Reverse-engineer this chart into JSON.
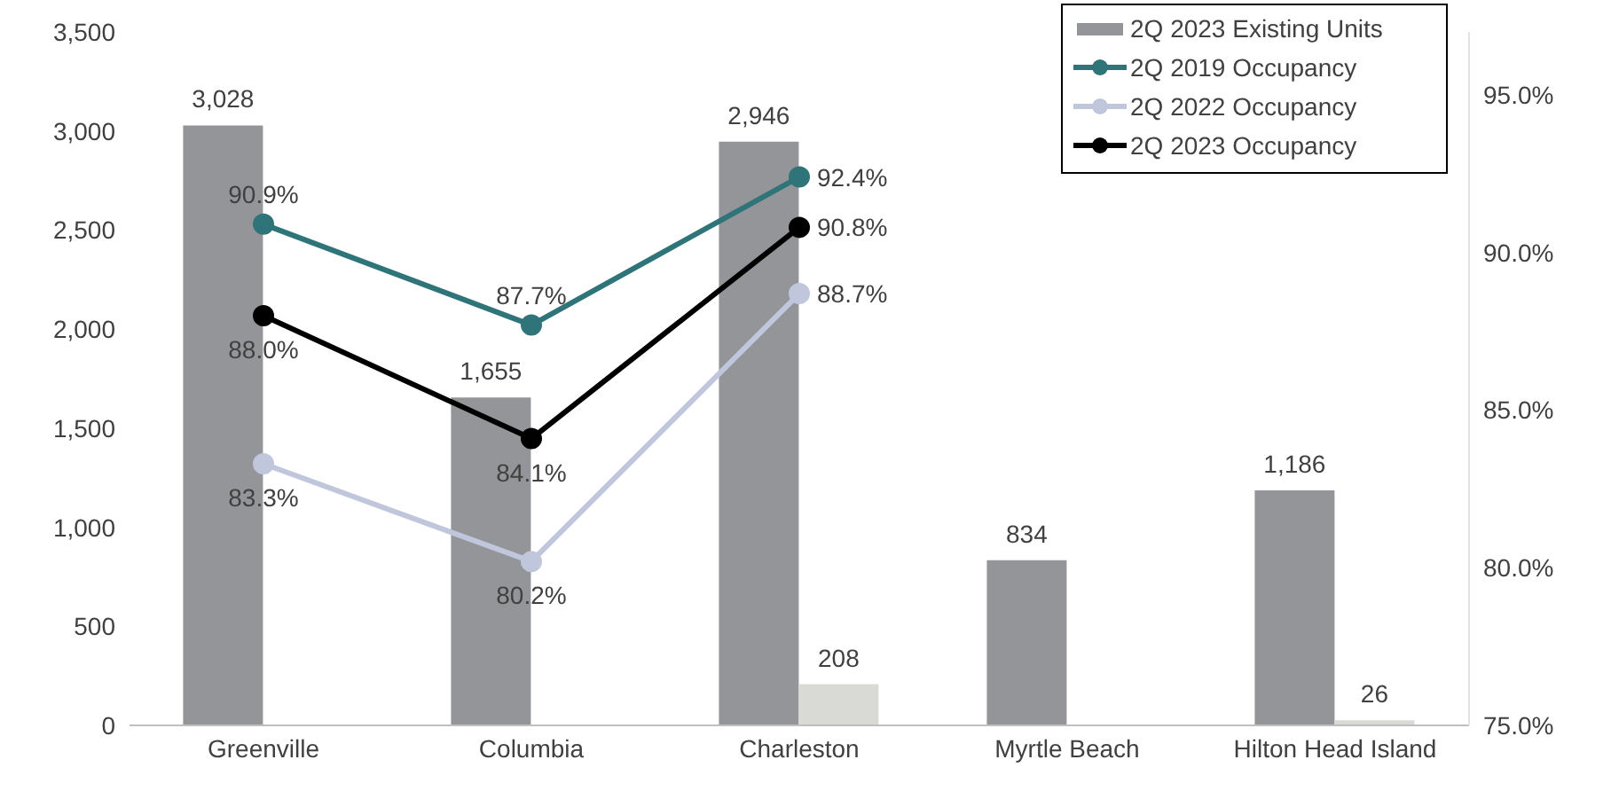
{
  "chart_data": {
    "type": "bar",
    "categories": [
      "Greenville",
      "Columbia",
      "Charleston",
      "Myrtle Beach",
      "Hilton Head Island"
    ],
    "series": [
      {
        "name": "2Q 2023 Existing Units",
        "color": "#939598",
        "values": [
          3028,
          1655,
          2946,
          834,
          1186
        ],
        "value_labels": [
          "3,028",
          "1,655",
          "2,946",
          "834",
          "1,186"
        ]
      },
      {
        "color": "#d9d9d6",
        "values": [
          null,
          null,
          208,
          null,
          26
        ],
        "value_labels": [
          null,
          null,
          "208",
          null,
          "26"
        ]
      },
      {
        "name": "2Q 2019 Occupancy",
        "type": "line",
        "axis": "y2",
        "color": "#2e7478",
        "values": [
          90.9,
          87.7,
          92.4,
          null,
          null
        ],
        "value_labels": [
          "90.9%",
          "87.7%",
          "92.4%",
          null,
          null
        ]
      },
      {
        "name": "2Q 2022 Occupancy",
        "type": "line",
        "axis": "y2",
        "color": "#c0c6dc",
        "values": [
          83.3,
          80.2,
          88.7,
          null,
          null
        ],
        "value_labels": [
          "83.3%",
          "80.2%",
          "88.7%",
          null,
          null
        ]
      },
      {
        "name": "2Q 2023 Occupancy",
        "type": "line",
        "axis": "y2",
        "color": "#000000",
        "values": [
          88.0,
          84.1,
          90.8,
          null,
          null
        ],
        "value_labels": [
          "88.0%",
          "84.1%",
          "90.8%",
          null,
          null
        ]
      }
    ],
    "ylim": [
      0,
      3500
    ],
    "yticks": [
      0,
      500,
      {
        "value": 1000,
        "label": "1,000"
      },
      {
        "value": 1500,
        "label": "1,500"
      },
      {
        "value": 2000,
        "label": "2,000"
      },
      {
        "value": 2500,
        "label": "2,500"
      },
      {
        "value": 3000,
        "label": "3,000"
      },
      {
        "value": 3500,
        "label": "3,500"
      }
    ],
    "y2lim": [
      75,
      97
    ],
    "y2ticks": [
      {
        "value": 75,
        "label": "75.0%"
      },
      {
        "value": 80,
        "label": "80.0%"
      },
      {
        "value": 85,
        "label": "85.0%"
      },
      {
        "value": 90,
        "label": "90.0%"
      },
      {
        "value": 95,
        "label": "95.0%"
      }
    ],
    "grid": false,
    "legend": "top right",
    "marker": "circle",
    "line_style": "solid"
  }
}
